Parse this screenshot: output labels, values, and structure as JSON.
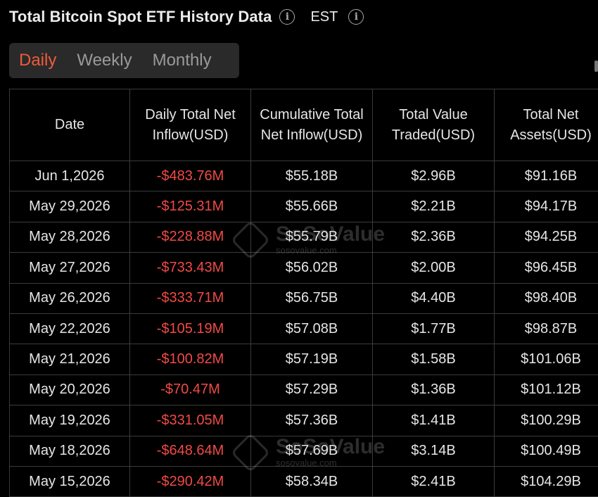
{
  "header": {
    "title": "Total Bitcoin Spot ETF History Data",
    "timezone": "EST",
    "info_glyph": "i"
  },
  "tabs": [
    {
      "label": "Daily",
      "active": true
    },
    {
      "label": "Weekly",
      "active": false
    },
    {
      "label": "Monthly",
      "active": false
    }
  ],
  "table": {
    "columns": [
      "Date",
      "Daily Total Net Inflow(USD)",
      "Cumulative Total Net Inflow(USD)",
      "Total Value Traded(USD)",
      "Total Net Assets(USD)"
    ],
    "rows": [
      [
        "Jun 1,2026",
        "-$483.76M",
        "$55.18B",
        "$2.96B",
        "$91.16B"
      ],
      [
        "May 29,2026",
        "-$125.31M",
        "$55.66B",
        "$2.21B",
        "$94.17B"
      ],
      [
        "May 28,2026",
        "-$228.88M",
        "$55.79B",
        "$2.36B",
        "$94.25B"
      ],
      [
        "May 27,2026",
        "-$733.43M",
        "$56.02B",
        "$2.00B",
        "$96.45B"
      ],
      [
        "May 26,2026",
        "-$333.71M",
        "$56.75B",
        "$4.40B",
        "$98.40B"
      ],
      [
        "May 22,2026",
        "-$105.19M",
        "$57.08B",
        "$1.77B",
        "$98.87B"
      ],
      [
        "May 21,2026",
        "-$100.82M",
        "$57.19B",
        "$1.58B",
        "$101.06B"
      ],
      [
        "May 20,2026",
        "-$70.47M",
        "$57.29B",
        "$1.36B",
        "$101.12B"
      ],
      [
        "May 19,2026",
        "-$331.05M",
        "$57.36B",
        "$1.41B",
        "$100.29B"
      ],
      [
        "May 18,2026",
        "-$648.64M",
        "$57.69B",
        "$3.14B",
        "$100.49B"
      ],
      [
        "May 15,2026",
        "-$290.42M",
        "$58.34B",
        "$2.41B",
        "$104.29B"
      ]
    ]
  },
  "watermark": {
    "name": "SoSoValue",
    "url": "sosovalue.com"
  },
  "colors": {
    "accent": "#ef5b3b",
    "negative": "#f04a45",
    "background": "#000000",
    "tab_bg": "#2a2a2a"
  }
}
